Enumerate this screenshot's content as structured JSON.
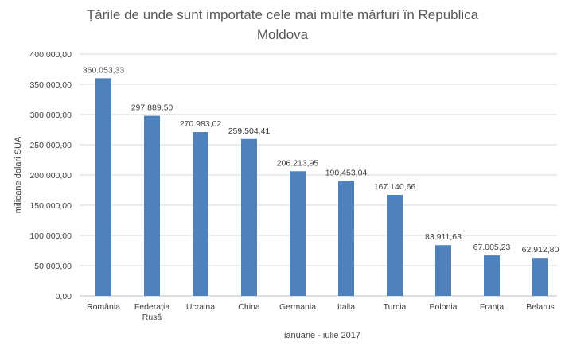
{
  "chart_data": {
    "type": "bar",
    "title": "Țările de unde sunt importate cele mai multe mărfuri în Republica Moldova",
    "xlabel": "ianuarie - iulie 2017",
    "ylabel": "milioane dolari SUA",
    "categories": [
      [
        "România"
      ],
      [
        "Federația",
        "Rusă"
      ],
      [
        "Ucraina"
      ],
      [
        "China"
      ],
      [
        "Germania"
      ],
      [
        "Italia"
      ],
      [
        "Turcia"
      ],
      [
        "Polonia"
      ],
      [
        "Franța"
      ],
      [
        "Belarus"
      ]
    ],
    "values": [
      360053.33,
      297889.5,
      270983.02,
      259504.41,
      206213.95,
      190453.04,
      167140.66,
      83911.63,
      67005.23,
      62912.8
    ],
    "value_labels": [
      "360.053,33",
      "297.889,50",
      "270.983,02",
      "259.504,41",
      "206.213,95",
      "190.453,04",
      "167.140,66",
      "83.911,63",
      "67.005,23",
      "62.912,80"
    ],
    "ylim": [
      0,
      400000
    ],
    "yticks": [
      0,
      50000,
      100000,
      150000,
      200000,
      250000,
      300000,
      350000,
      400000
    ],
    "ytick_labels": [
      "0,00",
      "50.000,00",
      "100.000,00",
      "150.000,00",
      "200.000,00",
      "250.000,00",
      "300.000,00",
      "350.000,00",
      "400.000,00"
    ],
    "grid": true,
    "legend": "none",
    "colors": {
      "bar": "#4f81bd",
      "grid": "#d9d9d9",
      "text": "#404040",
      "title": "#595959"
    }
  }
}
